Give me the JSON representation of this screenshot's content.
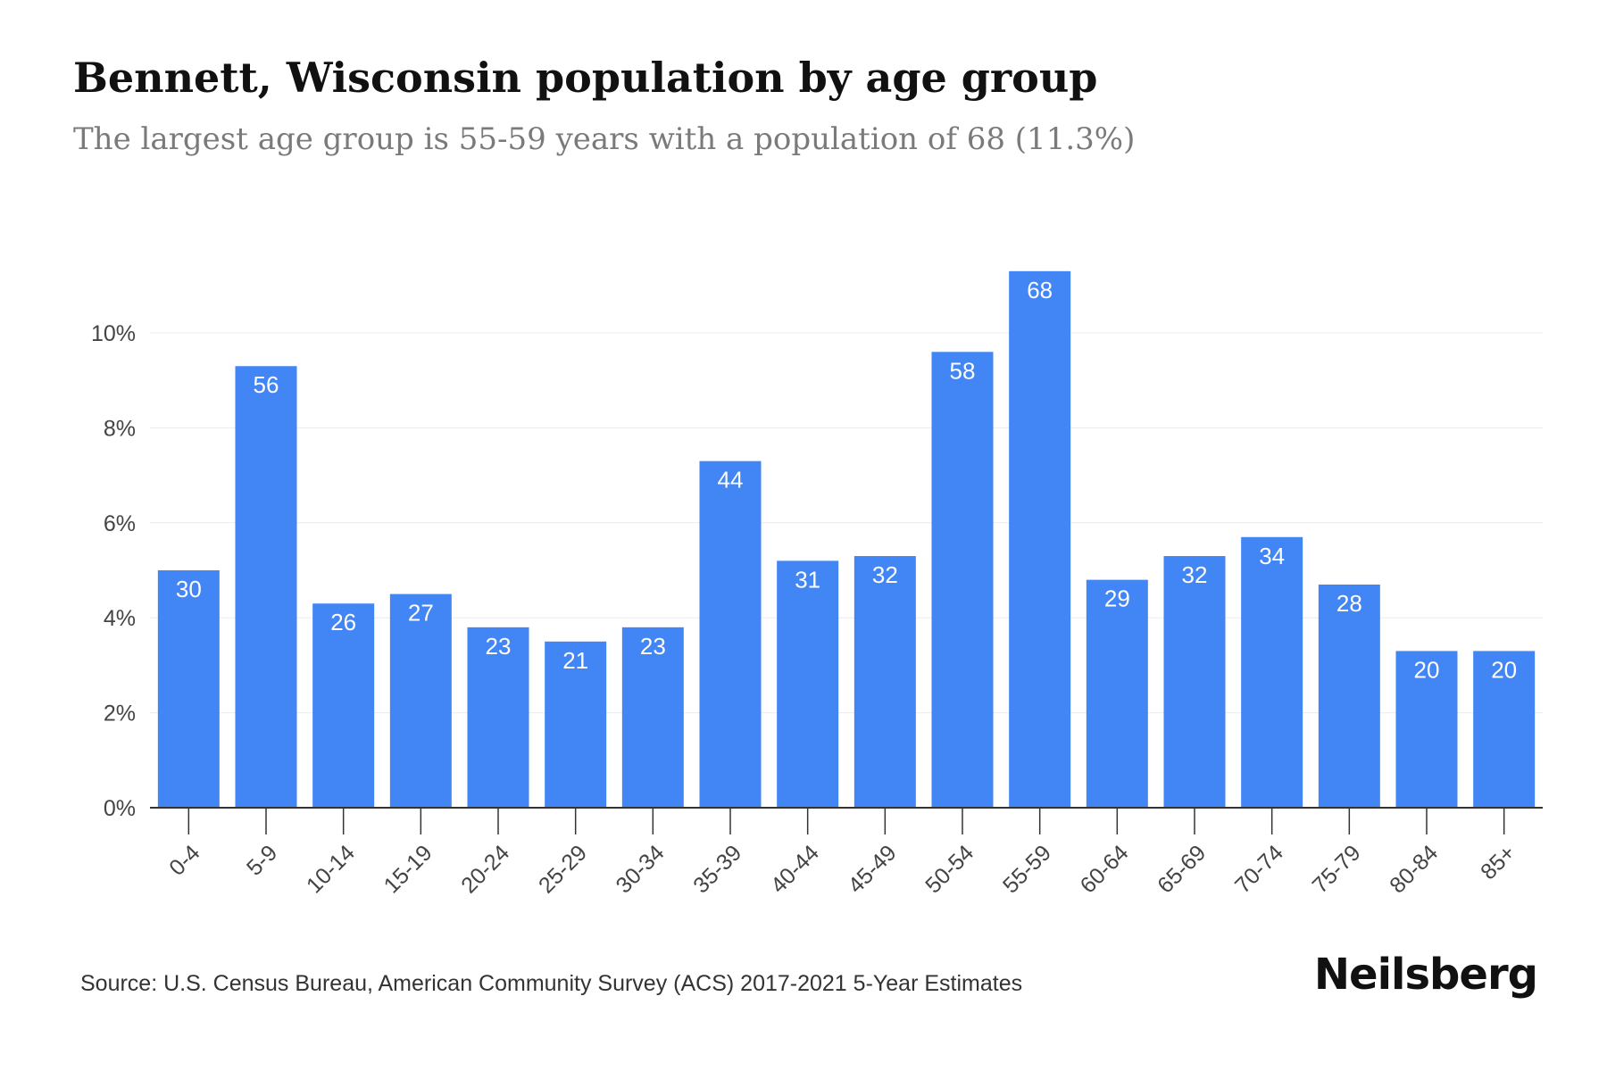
{
  "header": {
    "title": "Bennett, Wisconsin population by age group",
    "subtitle": "The largest age group is 55-59 years with a population of 68 (11.3%)"
  },
  "footer": {
    "source": "Source: U.S. Census Bureau, American Community Survey (ACS) 2017-2021 5-Year Estimates",
    "brand": "Neilsberg"
  },
  "colors": {
    "bar": "#4285f4",
    "bar_label": "#ffffff",
    "axis": "#333333",
    "grid": "#ececec",
    "tick_text": "#444444"
  },
  "chart_data": {
    "type": "bar",
    "title": "Bennett, Wisconsin population by age group",
    "subtitle": "The largest age group is 55-59 years with a population of 68 (11.3%)",
    "categories": [
      "0-4",
      "5-9",
      "10-14",
      "15-19",
      "20-24",
      "25-29",
      "30-34",
      "35-39",
      "40-44",
      "45-49",
      "50-54",
      "55-59",
      "60-64",
      "65-69",
      "70-74",
      "75-79",
      "80-84",
      "85+"
    ],
    "values_percent": [
      5.0,
      9.3,
      4.3,
      4.5,
      3.8,
      3.5,
      3.8,
      7.3,
      5.2,
      5.3,
      9.6,
      11.3,
      4.8,
      5.3,
      5.7,
      4.7,
      3.3,
      3.3
    ],
    "data_labels": [
      "30",
      "56",
      "26",
      "27",
      "23",
      "21",
      "23",
      "44",
      "31",
      "32",
      "58",
      "68",
      "29",
      "32",
      "34",
      "28",
      "20",
      "20"
    ],
    "y_ticks": [
      "0%",
      "2%",
      "4%",
      "6%",
      "8%",
      "10%"
    ],
    "y_tick_values": [
      0,
      2,
      4,
      6,
      8,
      10
    ],
    "ylim": [
      0,
      12
    ],
    "xlabel": "",
    "ylabel": "",
    "grid": true
  }
}
